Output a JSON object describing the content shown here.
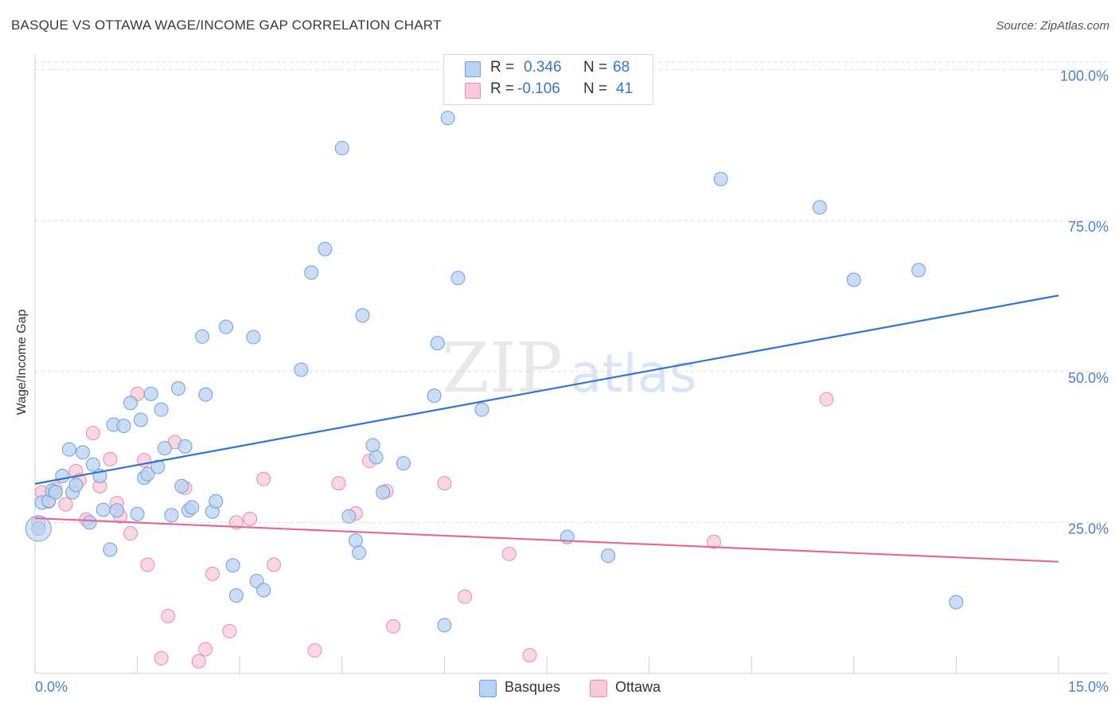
{
  "title": "BASQUE VS OTTAWA WAGE/INCOME GAP CORRELATION CHART",
  "source": "Source: ZipAtlas.com",
  "watermark": {
    "zip": "ZIP",
    "atlas": "atlas"
  },
  "legend_top": [
    {
      "r_label": "R =",
      "r_value": "0.346",
      "n_label": "N =",
      "n_value": "68"
    },
    {
      "r_label": "R =",
      "r_value": "-0.106",
      "n_label": "N =",
      "n_value": "41"
    }
  ],
  "legend_bottom": [
    {
      "label": "Basques"
    },
    {
      "label": "Ottawa"
    }
  ],
  "colors": {
    "blue_fill": "#b9d1f2",
    "blue_stroke": "#6f9fdc",
    "blue_line": "#2f74d0",
    "pink_fill": "#f8c9d8",
    "pink_stroke": "#ec8aaa",
    "pink_line": "#e06b94",
    "tick_text": "#4d7fcc",
    "grid": "#dcdcdc"
  },
  "chart_data": {
    "type": "scatter",
    "title": "BASQUE VS OTTAWA WAGE/INCOME GAP CORRELATION CHART",
    "xlabel": "",
    "ylabel": "Wage/Income Gap",
    "xlim": [
      0,
      15
    ],
    "ylim": [
      0,
      101
    ],
    "x_tick_labels": [
      {
        "value": 0,
        "label": "0.0%"
      },
      {
        "value": 15,
        "label": "15.0%"
      }
    ],
    "y_tick_labels": [
      {
        "value": 25,
        "label": "25.0%"
      },
      {
        "value": 50,
        "label": "50.0%"
      },
      {
        "value": 75,
        "label": "75.0%"
      },
      {
        "value": 100,
        "label": "100.0%"
      }
    ],
    "series": [
      {
        "name": "Basques",
        "r": 0.346,
        "n": 68,
        "trendline": {
          "x": [
            0,
            15
          ],
          "y": [
            31.4,
            62.6
          ]
        },
        "points": [
          [
            0.1,
            28.3
          ],
          [
            0.2,
            28.6
          ],
          [
            0.25,
            30.3
          ],
          [
            0.3,
            30.0
          ],
          [
            0.4,
            32.7
          ],
          [
            0.5,
            37.1
          ],
          [
            0.55,
            30.0
          ],
          [
            0.6,
            31.2
          ],
          [
            0.7,
            36.6
          ],
          [
            0.8,
            25.0
          ],
          [
            0.85,
            34.6
          ],
          [
            0.95,
            32.7
          ],
          [
            1.0,
            27.1
          ],
          [
            1.1,
            20.5
          ],
          [
            1.15,
            41.2
          ],
          [
            1.2,
            27.0
          ],
          [
            1.3,
            41.0
          ],
          [
            1.4,
            44.8
          ],
          [
            1.5,
            26.4
          ],
          [
            1.55,
            42.0
          ],
          [
            1.6,
            32.4
          ],
          [
            1.65,
            33.0
          ],
          [
            1.7,
            46.3
          ],
          [
            1.8,
            34.2
          ],
          [
            1.85,
            43.7
          ],
          [
            1.9,
            37.3
          ],
          [
            2.0,
            26.2
          ],
          [
            2.1,
            47.2
          ],
          [
            2.15,
            31.0
          ],
          [
            2.2,
            37.6
          ],
          [
            2.25,
            27.0
          ],
          [
            2.3,
            27.5
          ],
          [
            2.45,
            55.8
          ],
          [
            2.5,
            46.2
          ],
          [
            2.6,
            26.8
          ],
          [
            2.65,
            28.5
          ],
          [
            2.8,
            57.4
          ],
          [
            2.9,
            17.9
          ],
          [
            2.95,
            12.9
          ],
          [
            3.2,
            55.7
          ],
          [
            3.25,
            15.3
          ],
          [
            3.35,
            13.8
          ],
          [
            3.9,
            50.3
          ],
          [
            4.05,
            66.4
          ],
          [
            4.25,
            70.3
          ],
          [
            4.5,
            87.0
          ],
          [
            4.6,
            26.0
          ],
          [
            4.7,
            22.0
          ],
          [
            4.75,
            20.0
          ],
          [
            4.8,
            59.3
          ],
          [
            4.95,
            37.8
          ],
          [
            5.0,
            35.8
          ],
          [
            5.1,
            30.0
          ],
          [
            5.4,
            34.8
          ],
          [
            5.85,
            46.0
          ],
          [
            5.9,
            54.7
          ],
          [
            6.0,
            8.0
          ],
          [
            6.05,
            92.0
          ],
          [
            6.2,
            65.5
          ],
          [
            6.55,
            43.7
          ],
          [
            7.8,
            22.6
          ],
          [
            8.4,
            19.5
          ],
          [
            10.05,
            81.9
          ],
          [
            11.5,
            77.2
          ],
          [
            12.0,
            65.2
          ],
          [
            12.95,
            66.8
          ],
          [
            13.5,
            11.8
          ],
          [
            0.05,
            24.0
          ]
        ]
      },
      {
        "name": "Ottawa",
        "r": -0.106,
        "n": 41,
        "trendline": {
          "x": [
            0,
            15
          ],
          "y": [
            25.7,
            18.5
          ]
        },
        "points": [
          [
            0.05,
            25.0
          ],
          [
            0.2,
            28.5
          ],
          [
            0.3,
            30.5
          ],
          [
            0.45,
            28.0
          ],
          [
            0.6,
            33.5
          ],
          [
            0.65,
            32.0
          ],
          [
            0.75,
            25.5
          ],
          [
            0.85,
            39.8
          ],
          [
            0.95,
            31.0
          ],
          [
            1.1,
            35.5
          ],
          [
            1.2,
            28.2
          ],
          [
            1.25,
            26.0
          ],
          [
            1.4,
            23.2
          ],
          [
            1.5,
            46.3
          ],
          [
            1.6,
            35.3
          ],
          [
            1.65,
            18.0
          ],
          [
            1.85,
            2.5
          ],
          [
            1.95,
            9.5
          ],
          [
            2.05,
            38.3
          ],
          [
            2.2,
            30.7
          ],
          [
            2.4,
            2.0
          ],
          [
            2.5,
            4.0
          ],
          [
            2.6,
            16.5
          ],
          [
            2.85,
            7.0
          ],
          [
            2.95,
            25.0
          ],
          [
            3.15,
            25.6
          ],
          [
            3.35,
            32.2
          ],
          [
            3.5,
            18.0
          ],
          [
            4.1,
            3.8
          ],
          [
            4.45,
            31.5
          ],
          [
            4.7,
            26.5
          ],
          [
            4.9,
            35.2
          ],
          [
            5.15,
            30.2
          ],
          [
            5.25,
            7.8
          ],
          [
            6.0,
            31.5
          ],
          [
            6.3,
            12.7
          ],
          [
            6.95,
            19.8
          ],
          [
            7.25,
            3.0
          ],
          [
            9.95,
            21.8
          ],
          [
            11.6,
            45.4
          ],
          [
            0.1,
            30.0
          ]
        ]
      }
    ]
  }
}
